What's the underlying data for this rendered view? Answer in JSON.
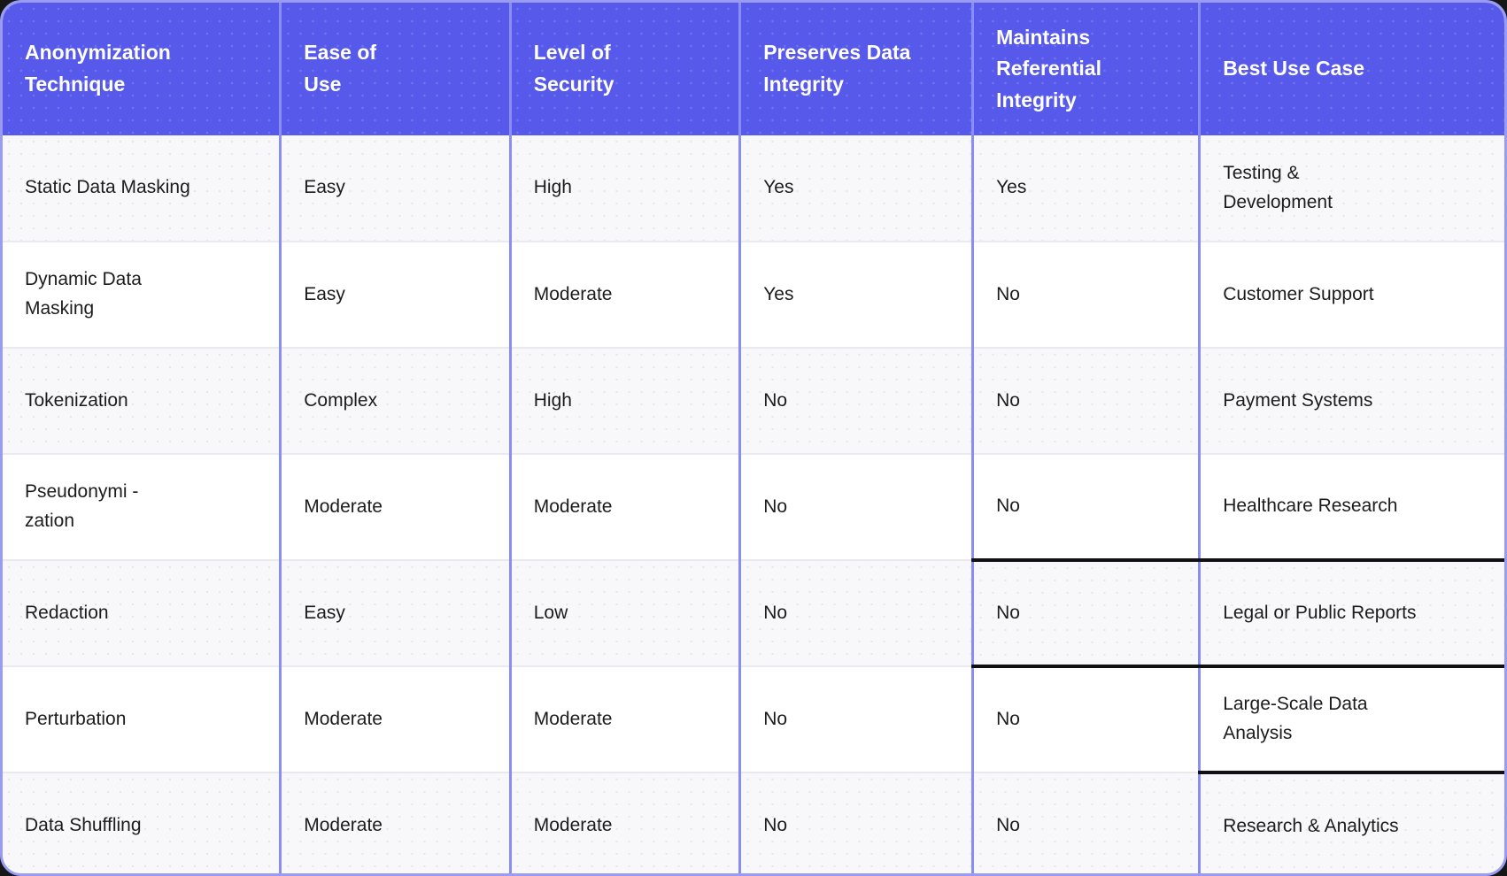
{
  "page": {
    "background": "#161616"
  },
  "table": {
    "columns": [
      {
        "key": "technique",
        "label": "Anonymization\nTechnique"
      },
      {
        "key": "ease",
        "label": "Ease of\nUse"
      },
      {
        "key": "security",
        "label": "Level of\nSecurity"
      },
      {
        "key": "preserves",
        "label": "Preserves Data\nIntegrity"
      },
      {
        "key": "referential",
        "label": "Maintains\nReferential\nIntegrity"
      },
      {
        "key": "use_case",
        "label": "Best Use Case"
      }
    ],
    "rows": [
      {
        "technique": "Static Data Masking",
        "ease": "Easy",
        "security": "High",
        "preserves": "Yes",
        "referential": "Yes",
        "use_case": "Testing &\nDevelopment"
      },
      {
        "technique": "Dynamic Data\nMasking",
        "ease": "Easy",
        "security": "Moderate",
        "preserves": "Yes",
        "referential": "No",
        "use_case": "Customer Support"
      },
      {
        "technique": "Tokenization",
        "ease": "Complex",
        "security": "High",
        "preserves": "No",
        "referential": "No",
        "use_case": "Payment Systems"
      },
      {
        "technique": "Pseudonymi -\nzation",
        "ease": "Moderate",
        "security": "Moderate",
        "preserves": "No",
        "referential": "No",
        "use_case": "Healthcare Research"
      },
      {
        "technique": "Redaction",
        "ease": "Easy",
        "security": "Low",
        "preserves": "No",
        "referential": "No",
        "use_case": "Legal or Public Reports"
      },
      {
        "technique": "Perturbation",
        "ease": "Moderate",
        "security": "Moderate",
        "preserves": "No",
        "referential": "No",
        "use_case": "Large-Scale Data\nAnalysis"
      },
      {
        "technique": "Data Shuffling",
        "ease": "Moderate",
        "security": "Moderate",
        "preserves": "No",
        "referential": "No",
        "use_case": "Research & Analytics"
      }
    ],
    "emphasis_lines": [
      {
        "row": 3,
        "cols": [
          "referential",
          "use_case"
        ]
      },
      {
        "row": 4,
        "cols": [
          "referential",
          "use_case"
        ]
      },
      {
        "row": 5,
        "cols": [
          "use_case"
        ]
      }
    ]
  },
  "colors": {
    "header_bg": "#5659e9",
    "header_text": "#ffffff",
    "column_divider": "#8a8df2",
    "row_divider": "#e9e9ef",
    "row_bg_dotted": "#f8f8fb",
    "row_bg_plain": "#ffffff",
    "body_text": "#1c1c1e",
    "emphasis_line": "#111111",
    "outer_border": "#9a9cf3",
    "page_background": "#161616"
  },
  "chart_data": {
    "type": "table",
    "title": "",
    "columns": [
      "Anonymization Technique",
      "Ease of Use",
      "Level of Security",
      "Preserves Data Integrity",
      "Maintains Referential Integrity",
      "Best Use Case"
    ],
    "rows": [
      [
        "Static Data Masking",
        "Easy",
        "High",
        "Yes",
        "Yes",
        "Testing & Development"
      ],
      [
        "Dynamic Data Masking",
        "Easy",
        "Moderate",
        "Yes",
        "No",
        "Customer Support"
      ],
      [
        "Tokenization",
        "Complex",
        "High",
        "No",
        "No",
        "Payment Systems"
      ],
      [
        "Pseudonymization",
        "Moderate",
        "Moderate",
        "No",
        "No",
        "Healthcare Research"
      ],
      [
        "Redaction",
        "Easy",
        "Low",
        "No",
        "No",
        "Legal or Public Reports"
      ],
      [
        "Perturbation",
        "Moderate",
        "Moderate",
        "No",
        "No",
        "Large-Scale Data Analysis"
      ],
      [
        "Data Shuffling",
        "Moderate",
        "Moderate",
        "No",
        "No",
        "Research & Analytics"
      ]
    ]
  }
}
